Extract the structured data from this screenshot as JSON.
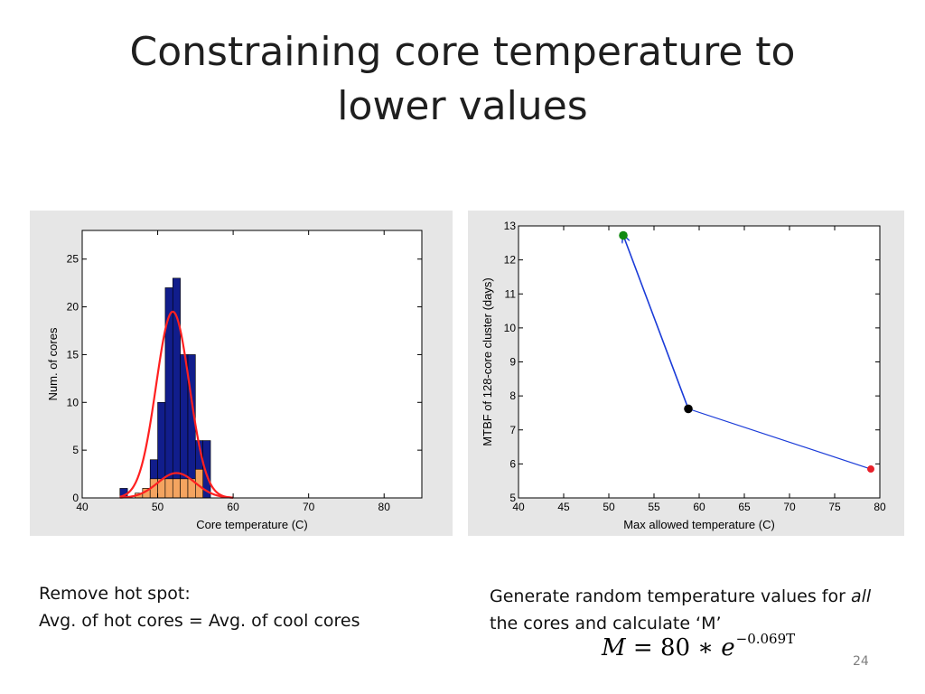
{
  "slide": {
    "title_line1": "Constraining core temperature to",
    "title_line2": "lower values",
    "page_number": "24"
  },
  "captions": {
    "left_line1": "Remove hot spot:",
    "left_line2": "Avg. of hot cores = Avg. of cool cores",
    "right_prefix": "Generate random temperature values for ",
    "right_emph": "all",
    "right_line2": "the cores and calculate ‘M’"
  },
  "formula": {
    "lhs": "M",
    "eq": " = 80 ∗ ",
    "base": "e",
    "exponent": "−0.069T"
  },
  "colors": {
    "hot_bars": "#111d8c",
    "cool_bars": "#f4a460",
    "fit_curve": "#ff2020",
    "mtbf_line": "#1a3bd8",
    "point_green": "#118a11",
    "point_black": "#000000",
    "point_red": "#e8202a"
  },
  "chart_data": [
    {
      "type": "bar",
      "xlabel": "Core temperature (C)",
      "ylabel": "Num. of cores",
      "xlim": [
        40,
        85
      ],
      "ylim": [
        0,
        28
      ],
      "xticks": [
        40,
        50,
        60,
        70,
        80
      ],
      "yticks": [
        0,
        5,
        10,
        15,
        20,
        25
      ],
      "bin_width": 1,
      "series": [
        {
          "bin_starts": [
            45,
            46,
            47,
            48,
            49,
            50,
            51,
            52,
            53,
            54,
            55,
            56
          ],
          "values": [
            1,
            0,
            0,
            1,
            4,
            10,
            22,
            23,
            15,
            15,
            6,
            6
          ]
        },
        {
          "bin_starts": [
            47,
            48,
            49,
            50,
            51,
            52,
            53,
            54,
            55
          ],
          "values": [
            0.5,
            1,
            2,
            2,
            2,
            2,
            2,
            2,
            3
          ]
        }
      ],
      "fit_curves": [
        {
          "mean": 52,
          "std": 2.2,
          "peak": 19.5,
          "range": [
            45,
            60
          ]
        },
        {
          "mean": 52.5,
          "std": 2.5,
          "peak": 2.6,
          "range": [
            45,
            60
          ]
        }
      ]
    },
    {
      "type": "line",
      "xlabel": "Max allowed temperature (C)",
      "ylabel": "MTBF of 128-core cluster (days)",
      "xlim": [
        40,
        80
      ],
      "ylim": [
        5,
        13
      ],
      "xticks": [
        40,
        45,
        50,
        55,
        60,
        65,
        70,
        75,
        80
      ],
      "yticks": [
        5,
        6,
        7,
        8,
        9,
        10,
        11,
        12,
        13
      ],
      "series": [
        {
          "x": [
            58.8,
            51.6
          ],
          "y": [
            7.62,
            12.72
          ]
        },
        {
          "x": [
            58.8,
            79.0
          ],
          "y": [
            7.62,
            5.85
          ]
        }
      ],
      "points": [
        {
          "x": 51.6,
          "y": 12.72,
          "color": "point_green"
        },
        {
          "x": 58.8,
          "y": 7.62,
          "color": "point_black"
        },
        {
          "x": 79.0,
          "y": 5.85,
          "color": "point_red"
        }
      ]
    }
  ]
}
